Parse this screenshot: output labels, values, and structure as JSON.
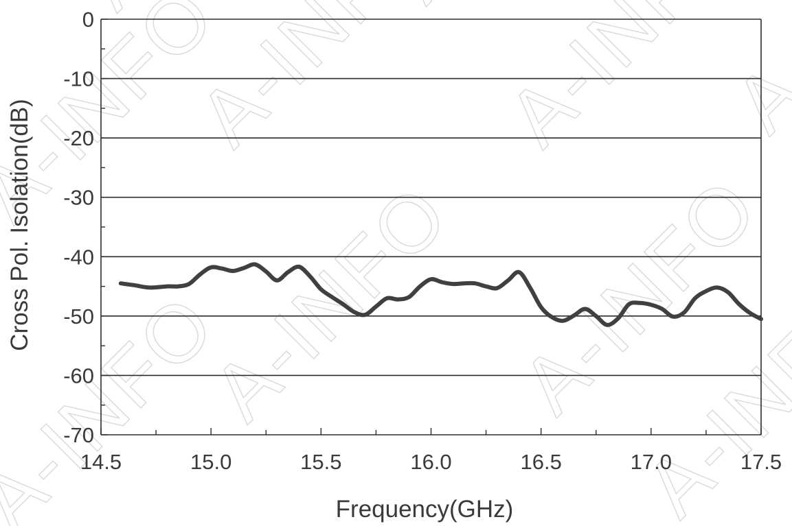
{
  "watermark": "A-INFO",
  "chart_data": {
    "type": "line",
    "title": "",
    "xlabel": "Frequency(GHz)",
    "ylabel": "Cross Pol. Isolation(dB)",
    "xlim": [
      14.5,
      17.5
    ],
    "ylim": [
      -70,
      0
    ],
    "x_ticks": [
      14.5,
      15.0,
      15.5,
      16.0,
      16.5,
      17.0,
      17.5
    ],
    "x_tick_labels": [
      "14.5",
      "15.0",
      "15.5",
      "16.0",
      "16.5",
      "17.0",
      "17.5"
    ],
    "y_ticks": [
      0,
      -10,
      -20,
      -30,
      -40,
      -50,
      -60,
      -70
    ],
    "y_tick_labels": [
      "0",
      "-10",
      "-20",
      "-30",
      "-40",
      "-50",
      "-60",
      "-70"
    ],
    "grid": "horizontal",
    "legend": "none",
    "series_color": "#404040",
    "series": [
      {
        "x": [
          14.59,
          14.65,
          14.72,
          14.8,
          14.85,
          14.9,
          14.95,
          15.0,
          15.05,
          15.1,
          15.15,
          15.2,
          15.25,
          15.3,
          15.35,
          15.4,
          15.45,
          15.5,
          15.55,
          15.6,
          15.65,
          15.7,
          15.75,
          15.8,
          15.85,
          15.9,
          15.95,
          16.0,
          16.05,
          16.1,
          16.15,
          16.2,
          16.25,
          16.3,
          16.35,
          16.4,
          16.45,
          16.5,
          16.55,
          16.6,
          16.65,
          16.7,
          16.75,
          16.8,
          16.85,
          16.9,
          16.95,
          17.0,
          17.05,
          17.1,
          17.15,
          17.2,
          17.25,
          17.3,
          17.35,
          17.4,
          17.45,
          17.5
        ],
        "values": [
          -44.5,
          -44.8,
          -45.2,
          -45.0,
          -45.0,
          -44.6,
          -43.0,
          -41.8,
          -42.0,
          -42.4,
          -41.9,
          -41.3,
          -42.5,
          -44.0,
          -42.6,
          -41.7,
          -43.3,
          -45.5,
          -46.8,
          -48.0,
          -49.3,
          -49.8,
          -48.4,
          -47.0,
          -47.2,
          -46.8,
          -45.0,
          -43.8,
          -44.3,
          -44.6,
          -44.5,
          -44.5,
          -45.0,
          -45.3,
          -44.0,
          -42.6,
          -45.2,
          -48.5,
          -50.2,
          -50.8,
          -49.9,
          -48.8,
          -50.0,
          -51.5,
          -50.4,
          -48.0,
          -47.8,
          -48.1,
          -48.8,
          -50.1,
          -49.4,
          -47.0,
          -45.8,
          -45.2,
          -46.0,
          -48.0,
          -49.5,
          -50.5
        ]
      }
    ]
  }
}
